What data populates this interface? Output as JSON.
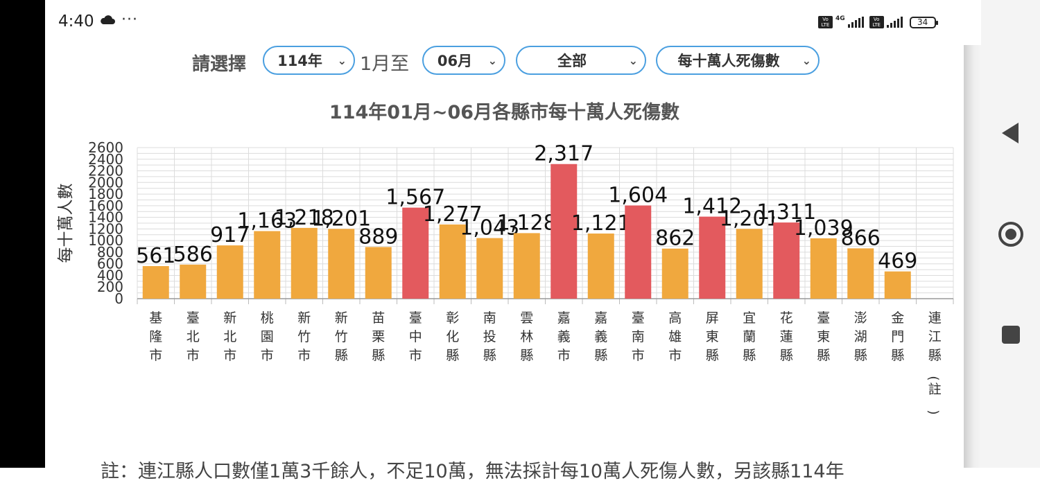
{
  "status_bar": {
    "time": "4:40",
    "dots": "···",
    "volte": "Vo LTE",
    "network": "4G",
    "battery": "34"
  },
  "filters": {
    "label": "請選擇",
    "year": "114年",
    "range_text": "1月至",
    "month": "06月",
    "region": "全部",
    "metric": "每十萬人死傷數"
  },
  "chart_data": {
    "type": "bar",
    "title": "114年01月~06月各縣市每十萬人死傷數",
    "ylabel": "每十萬人數",
    "xlabel": "",
    "ylim": [
      0,
      2600
    ],
    "yticks": [
      0,
      200,
      400,
      600,
      800,
      1000,
      1200,
      1400,
      1600,
      1800,
      2000,
      2200,
      2400,
      2600
    ],
    "categories": [
      "基隆市",
      "臺北市",
      "新北市",
      "桃園市",
      "新竹市",
      "新竹縣",
      "苗栗縣",
      "臺中市",
      "彰化縣",
      "南投縣",
      "雲林縣",
      "嘉義市",
      "嘉義縣",
      "臺南市",
      "高雄市",
      "屏東縣",
      "宜蘭縣",
      "花蓮縣",
      "臺東縣",
      "澎湖縣",
      "金門縣",
      "連江縣（註）"
    ],
    "values": [
      561,
      586,
      917,
      1163,
      1218,
      1201,
      889,
      1567,
      1277,
      1043,
      1128,
      2317,
      1121,
      1604,
      862,
      1412,
      1201,
      1311,
      1039,
      866,
      469,
      null
    ],
    "labels": [
      "561",
      "586",
      "917",
      "1,163",
      "1,218",
      "1,201",
      "889",
      "1,567",
      "1,277",
      "1,043",
      "1,128",
      "2,317",
      "1,121",
      "1,604",
      "862",
      "1,412",
      "1,201",
      "1,311",
      "1,039",
      "866",
      "469",
      ""
    ],
    "highlight": [
      false,
      false,
      false,
      false,
      false,
      false,
      false,
      true,
      false,
      false,
      false,
      true,
      false,
      true,
      false,
      true,
      false,
      true,
      false,
      false,
      false,
      false
    ],
    "colors": {
      "normal": "#f0a83e",
      "highlight": "#e35a5e"
    },
    "grid": true
  },
  "note": "註：連江縣人口數僅1萬3千餘人，不足10萬，無法採計每10萬人死傷人數，另該縣114年"
}
